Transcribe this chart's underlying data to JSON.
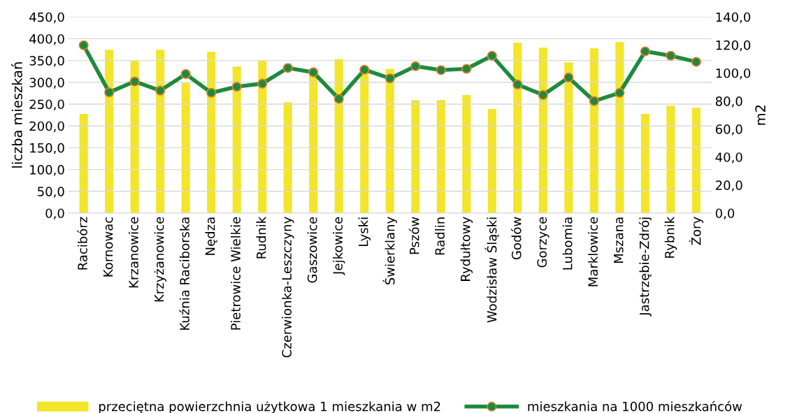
{
  "chart_data": {
    "type": "bar",
    "ylabel": "liczba mieszkań",
    "y2label": "m2",
    "categories": [
      "Racibórz",
      "Kornowac",
      "Krzanowice",
      "Krzyżanowice",
      "Kuźnia Raciborska",
      "Nędza",
      "Pietrowice Wielkie",
      "Rudnik",
      "Czerwionka-Leszczyny",
      "Gaszowice",
      "Jejkowice",
      "Lyski",
      "Świerklany",
      "Pszów",
      "Radlin",
      "Rydułtowy",
      "Wodzisław Śląski",
      "Godów",
      "Gorzyce",
      "Lubomia",
      "Marklowice",
      "Mszana",
      "Jastrzębie-Zdrój",
      "Rybnik",
      "Żory"
    ],
    "series": [
      {
        "name": "przeciętna powierzchnia użytkowa 1 mieszkania w m2",
        "axis": "y2",
        "color": "#f2e52a",
        "values": [
          70.8,
          116.6,
          108.6,
          116.6,
          92.7,
          115,
          104.6,
          108.6,
          79.2,
          102,
          110,
          104,
          103,
          80.7,
          80.7,
          84.2,
          74.3,
          121.6,
          118,
          107.6,
          117.6,
          122,
          70.8,
          76.7,
          75.2
        ]
      },
      {
        "name": "mieszkania na 1000 mieszkańców",
        "type": "line",
        "axis": "y",
        "color": "#1f8a3c",
        "marker": "circle",
        "values": [
          385,
          277,
          302,
          281,
          319,
          276,
          290,
          297,
          333,
          323,
          262,
          329,
          309,
          337,
          328,
          331,
          361,
          295,
          271,
          311,
          257,
          276,
          371,
          361,
          347
        ]
      }
    ],
    "ylim": [
      0,
      450
    ],
    "yticks": [
      {
        "value": 0,
        "label": "0,0"
      },
      {
        "value": 50,
        "label": "50,0"
      },
      {
        "value": 100,
        "label": "100,0"
      },
      {
        "value": 150,
        "label": "150,0"
      },
      {
        "value": 200,
        "label": "200,0"
      },
      {
        "value": 250,
        "label": "250,0"
      },
      {
        "value": 300,
        "label": "300,0"
      },
      {
        "value": 350,
        "label": "350,0"
      },
      {
        "value": 400,
        "label": "400,0"
      },
      {
        "value": 450,
        "label": "450,0"
      }
    ],
    "y2lim": [
      0,
      140
    ],
    "y2ticks": [
      {
        "value": 0,
        "label": "0,0"
      },
      {
        "value": 20,
        "label": "20,0"
      },
      {
        "value": 40,
        "label": "40,0"
      },
      {
        "value": 60,
        "label": "60,0"
      },
      {
        "value": 80,
        "label": "80,0"
      },
      {
        "value": 100,
        "label": "100,0"
      },
      {
        "value": 120,
        "label": "120,0"
      },
      {
        "value": 140,
        "label": "140,0"
      }
    ],
    "grid": "y",
    "legend": "bottom"
  }
}
